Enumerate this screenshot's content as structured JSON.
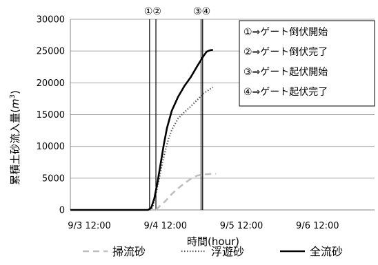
{
  "chart_data": {
    "type": "line",
    "xlabel": "時間(hour)",
    "ylabel": "累積土砂流入量(m³)",
    "ylabel_main": "累積土砂流入量(",
    "ylabel_unit": "m",
    "ylabel_exp": "3",
    "ylabel_close": ")",
    "xlim": [
      "2000-09-03 06:00",
      "2000-09-07 06:00"
    ],
    "ylim": [
      0,
      30000
    ],
    "grid": true,
    "legend_position": "bottom",
    "x_tick_labels": [
      "9/3 12:00",
      "9/4 12:00",
      "9/5 12:00",
      "9/6 12:00"
    ],
    "y_tick_labels": [
      "0",
      "5000",
      "10000",
      "15000",
      "20000",
      "25000",
      "30000"
    ],
    "series": [
      {
        "name": "掃流砂",
        "style": "dashed",
        "color": "#bfbfbf",
        "points": [
          [
            "2000-09-04 09:00",
            0
          ],
          [
            "2000-09-04 10:00",
            500
          ],
          [
            "2000-09-04 12:00",
            1400
          ],
          [
            "2000-09-04 14:00",
            2500
          ],
          [
            "2000-09-04 16:00",
            3400
          ],
          [
            "2000-09-04 18:00",
            4200
          ],
          [
            "2000-09-04 20:00",
            4900
          ],
          [
            "2000-09-04 22:00",
            5400
          ],
          [
            "2000-09-05 00:00",
            5600
          ],
          [
            "2000-09-05 02:00",
            5650
          ],
          [
            "2000-09-05 04:00",
            5700
          ]
        ]
      },
      {
        "name": "浮遊砂",
        "style": "dotted",
        "color": "#595959",
        "points": [
          [
            "2000-09-04 07:00",
            0
          ],
          [
            "2000-09-04 07:30",
            100
          ],
          [
            "2000-09-04 08:00",
            500
          ],
          [
            "2000-09-04 09:00",
            2500
          ],
          [
            "2000-09-04 10:00",
            4800
          ],
          [
            "2000-09-04 11:00",
            7300
          ],
          [
            "2000-09-04 12:00",
            9400
          ],
          [
            "2000-09-04 13:00",
            11200
          ],
          [
            "2000-09-04 14:00",
            12600
          ],
          [
            "2000-09-04 16:00",
            14400
          ],
          [
            "2000-09-04 18:00",
            15400
          ],
          [
            "2000-09-04 20:00",
            16300
          ],
          [
            "2000-09-04 22:00",
            17300
          ],
          [
            "2000-09-05 00:00",
            18300
          ],
          [
            "2000-09-05 02:00",
            19000
          ],
          [
            "2000-09-05 03:00",
            19300
          ]
        ]
      },
      {
        "name": "全流砂",
        "style": "solid",
        "color": "#000000",
        "points": [
          [
            "2000-09-03 06:00",
            0
          ],
          [
            "2000-09-04 06:30",
            0
          ],
          [
            "2000-09-04 07:30",
            300
          ],
          [
            "2000-09-04 08:30",
            1800
          ],
          [
            "2000-09-04 09:30",
            4300
          ],
          [
            "2000-09-04 10:30",
            7300
          ],
          [
            "2000-09-04 11:30",
            10300
          ],
          [
            "2000-09-04 12:30",
            12900
          ],
          [
            "2000-09-04 14:00",
            15600
          ],
          [
            "2000-09-04 16:00",
            17800
          ],
          [
            "2000-09-04 18:00",
            19500
          ],
          [
            "2000-09-04 20:00",
            20900
          ],
          [
            "2000-09-04 22:00",
            22600
          ],
          [
            "2000-09-05 00:00",
            24200
          ],
          [
            "2000-09-05 01:00",
            24900
          ],
          [
            "2000-09-05 02:00",
            25100
          ],
          [
            "2000-09-05 03:00",
            25200
          ]
        ]
      }
    ],
    "event_markers": [
      {
        "label": "①",
        "x": "2000-09-04 07:00"
      },
      {
        "label": "②",
        "x": "2000-09-04 09:00"
      },
      {
        "label": "③",
        "x": "2000-09-04 23:15"
      },
      {
        "label": "④",
        "x": "2000-09-04 23:45"
      }
    ],
    "event_marker_groups": [
      {
        "label": "①②",
        "lines": [
          0,
          1
        ]
      },
      {
        "label": "③④",
        "lines": [
          2,
          3
        ]
      }
    ],
    "annotations": [
      "①⇒ゲート倒伏開始",
      "②⇒ゲート倒伏完了",
      "③⇒ゲート起伏開始",
      "④⇒ゲート起伏完了"
    ]
  }
}
